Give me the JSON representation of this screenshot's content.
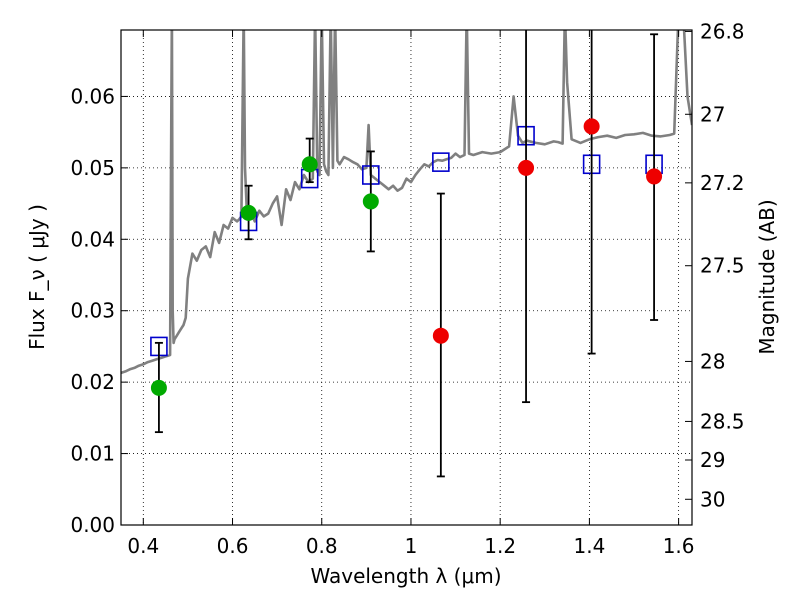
{
  "chart_data": {
    "type": "scatter",
    "xlabel": "Wavelength  λ (μm)",
    "ylabel": "Flux  F_ν  ( μJy )",
    "ylabel_right": "Magnitude (AB)",
    "xlim": [
      0.35,
      1.63
    ],
    "ylim": [
      0.0,
      0.0693
    ],
    "grid": true,
    "x_ticks": [
      {
        "value": 0.4,
        "label": "0.4"
      },
      {
        "value": 0.6,
        "label": "0.6"
      },
      {
        "value": 0.8,
        "label": "0.8"
      },
      {
        "value": 1.0,
        "label": "1"
      },
      {
        "value": 1.2,
        "label": "1.2"
      },
      {
        "value": 1.4,
        "label": "1.4"
      },
      {
        "value": 1.6,
        "label": "1.6"
      }
    ],
    "y_ticks": [
      {
        "value": 0.0,
        "label": "0.00"
      },
      {
        "value": 0.01,
        "label": "0.01"
      },
      {
        "value": 0.02,
        "label": "0.02"
      },
      {
        "value": 0.03,
        "label": "0.03"
      },
      {
        "value": 0.04,
        "label": "0.04"
      },
      {
        "value": 0.05,
        "label": "0.05"
      },
      {
        "value": 0.06,
        "label": "0.06"
      }
    ],
    "right_ticks": [
      {
        "flux": 0.0691,
        "label": "26.8"
      },
      {
        "flux": 0.0575,
        "label": "27"
      },
      {
        "flux": 0.0479,
        "label": "27.2"
      },
      {
        "flux": 0.0363,
        "label": "27.5"
      },
      {
        "flux": 0.0229,
        "label": "28"
      },
      {
        "flux": 0.0145,
        "label": "28.5"
      },
      {
        "flux": 0.0091,
        "label": "29"
      },
      {
        "flux": 0.0036,
        "label": "30"
      }
    ],
    "series": [
      {
        "kind": "line",
        "color": "#808080",
        "x": [
          0.35,
          0.36,
          0.37,
          0.38,
          0.39,
          0.4,
          0.41,
          0.42,
          0.43,
          0.44,
          0.445,
          0.45,
          0.455,
          0.46,
          0.462,
          0.464,
          0.466,
          0.468,
          0.47,
          0.475,
          0.48,
          0.485,
          0.49,
          0.495,
          0.5,
          0.51,
          0.52,
          0.53,
          0.54,
          0.55,
          0.56,
          0.57,
          0.58,
          0.59,
          0.6,
          0.61,
          0.615,
          0.62,
          0.625,
          0.628,
          0.632,
          0.636,
          0.64,
          0.65,
          0.66,
          0.67,
          0.68,
          0.69,
          0.7,
          0.71,
          0.72,
          0.73,
          0.74,
          0.75,
          0.76,
          0.77,
          0.78,
          0.785,
          0.79,
          0.795,
          0.8,
          0.805,
          0.81,
          0.815,
          0.82,
          0.825,
          0.83,
          0.835,
          0.84,
          0.85,
          0.86,
          0.87,
          0.88,
          0.89,
          0.9,
          0.905,
          0.91,
          0.92,
          0.93,
          0.94,
          0.95,
          0.96,
          0.97,
          0.98,
          0.99,
          1.0,
          1.01,
          1.02,
          1.03,
          1.04,
          1.05,
          1.06,
          1.07,
          1.08,
          1.09,
          1.1,
          1.11,
          1.12,
          1.125,
          1.13,
          1.14,
          1.16,
          1.18,
          1.2,
          1.22,
          1.23,
          1.24,
          1.25,
          1.26,
          1.28,
          1.3,
          1.32,
          1.33,
          1.34,
          1.345,
          1.35,
          1.36,
          1.38,
          1.4,
          1.42,
          1.44,
          1.46,
          1.48,
          1.5,
          1.52,
          1.54,
          1.56,
          1.58,
          1.59,
          1.6,
          1.61,
          1.62,
          1.63
        ],
        "y": [
          0.0213,
          0.0215,
          0.0218,
          0.022,
          0.0223,
          0.0225,
          0.0228,
          0.023,
          0.0232,
          0.0234,
          0.0235,
          0.0236,
          0.0237,
          0.0238,
          0.05,
          0.072,
          0.03,
          0.0255,
          0.026,
          0.0265,
          0.027,
          0.0275,
          0.028,
          0.029,
          0.0345,
          0.038,
          0.037,
          0.0385,
          0.039,
          0.0375,
          0.041,
          0.0395,
          0.042,
          0.0415,
          0.043,
          0.0425,
          0.0428,
          0.0432,
          0.072,
          0.05,
          0.044,
          0.043,
          0.0438,
          0.0425,
          0.044,
          0.0432,
          0.0436,
          0.045,
          0.046,
          0.042,
          0.047,
          0.0455,
          0.048,
          0.047,
          0.049,
          0.048,
          0.0485,
          0.072,
          0.0495,
          0.049,
          0.072,
          0.0505,
          0.0495,
          0.049,
          0.072,
          0.05,
          0.072,
          0.051,
          0.0505,
          0.0515,
          0.0512,
          0.0508,
          0.0505,
          0.0498,
          0.05,
          0.056,
          0.049,
          0.0485,
          0.048,
          0.0475,
          0.047,
          0.0475,
          0.0468,
          0.0472,
          0.0485,
          0.048,
          0.049,
          0.0498,
          0.0505,
          0.0502,
          0.0508,
          0.0511,
          0.051,
          0.0512,
          0.0514,
          0.052,
          0.0515,
          0.0518,
          0.072,
          0.052,
          0.0518,
          0.0522,
          0.052,
          0.0522,
          0.053,
          0.06,
          0.0545,
          0.0535,
          0.0538,
          0.0535,
          0.0533,
          0.0537,
          0.0536,
          0.0534,
          0.072,
          0.062,
          0.054,
          0.0535,
          0.054,
          0.0543,
          0.0545,
          0.0542,
          0.0546,
          0.0547,
          0.0549,
          0.0545,
          0.0544,
          0.0546,
          0.0548,
          0.072,
          0.072,
          0.06,
          0.056
        ]
      },
      {
        "kind": "squares",
        "color": "#0000cc",
        "x": [
          0.435,
          0.636,
          0.773,
          0.91,
          1.067,
          1.258,
          1.405,
          1.545
        ],
        "y": [
          0.025,
          0.0425,
          0.0485,
          0.049,
          0.0508,
          0.0545,
          0.0505,
          0.0505
        ]
      },
      {
        "kind": "points",
        "color": "#00aa00",
        "x": [
          0.435,
          0.636,
          0.773,
          0.91
        ],
        "y": [
          0.0192,
          0.0437,
          0.0505,
          0.0453
        ],
        "yerr_low": [
          0.013,
          0.04,
          0.048,
          0.0383
        ],
        "yerr_high": [
          0.0255,
          0.0475,
          0.0541,
          0.0523
        ]
      },
      {
        "kind": "points",
        "color": "#ee0000",
        "x": [
          1.067,
          1.258,
          1.405,
          1.545
        ],
        "y": [
          0.0265,
          0.05,
          0.0558,
          0.0488
        ],
        "yerr_low": [
          0.0068,
          0.0172,
          0.024,
          0.0287
        ],
        "yerr_high": [
          0.0464,
          0.072,
          0.072,
          0.0687
        ]
      }
    ]
  }
}
